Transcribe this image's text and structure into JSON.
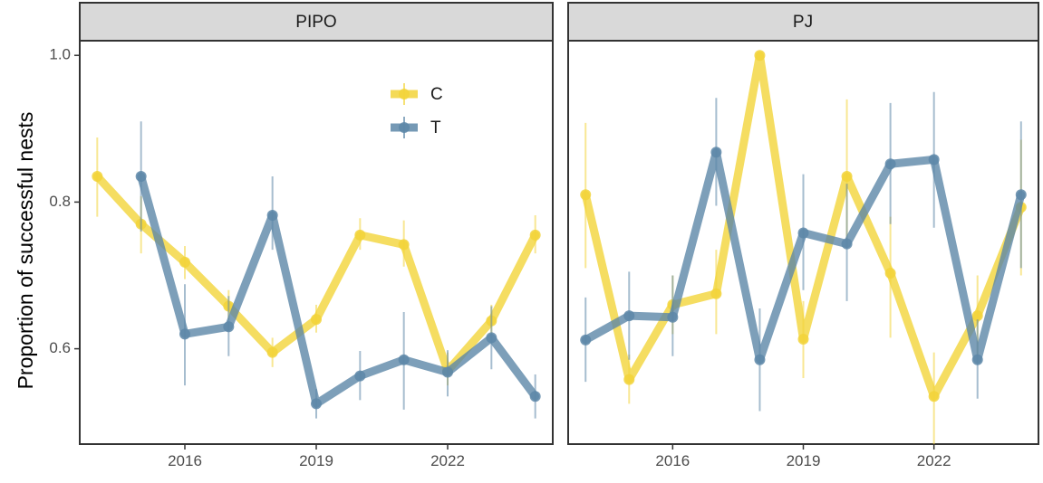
{
  "colors": {
    "C": "#f2d43a",
    "T": "#5d87a8",
    "strip_fill": "#d9d9d9",
    "frame": "#333333"
  },
  "chart_data": {
    "type": "line",
    "ylabel": "Proportion of successful nests",
    "xlabel": "",
    "ylim": [
      0.47,
      1.02
    ],
    "xlim": [
      2013.6,
      2024.4
    ],
    "x_ticks": [
      2016,
      2019,
      2022
    ],
    "y_ticks": [
      0.6,
      0.8,
      1.0
    ],
    "y_tick_labels": [
      "0.6",
      "0.8",
      "1.0"
    ],
    "legend": {
      "position": "inside-top",
      "entries": [
        "C",
        "T"
      ]
    },
    "grid": false,
    "panels": [
      {
        "strip": "PIPO",
        "series": [
          {
            "name": "C",
            "x": [
              2014,
              2015,
              2016,
              2017,
              2018,
              2019,
              2020,
              2021,
              2022,
              2023,
              2024
            ],
            "values": [
              0.835,
              0.77,
              0.718,
              0.658,
              0.595,
              0.64,
              0.755,
              0.742,
              0.57,
              0.638,
              0.755
            ],
            "err_low": [
              0.78,
              0.73,
              0.695,
              0.64,
              0.575,
              0.622,
              0.735,
              0.712,
              0.55,
              0.615,
              0.73
            ],
            "err_high": [
              0.888,
              0.808,
              0.74,
              0.68,
              0.615,
              0.66,
              0.778,
              0.775,
              0.595,
              0.66,
              0.782
            ]
          },
          {
            "name": "T",
            "x": [
              2015,
              2016,
              2017,
              2018,
              2019,
              2020,
              2021,
              2022,
              2023,
              2024
            ],
            "values": [
              0.835,
              0.62,
              0.63,
              0.782,
              0.525,
              0.563,
              0.585,
              0.568,
              0.615,
              0.535
            ],
            "err_low": [
              0.76,
              0.55,
              0.59,
              0.735,
              0.505,
              0.53,
              0.517,
              0.535,
              0.572,
              0.505
            ],
            "err_high": [
              0.91,
              0.688,
              0.672,
              0.835,
              0.545,
              0.597,
              0.65,
              0.598,
              0.658,
              0.565
            ]
          }
        ]
      },
      {
        "strip": "PJ",
        "series": [
          {
            "name": "C",
            "x": [
              2014,
              2015,
              2016,
              2017,
              2018,
              2019,
              2020,
              2021,
              2022,
              2023,
              2024
            ],
            "values": [
              0.81,
              0.558,
              0.66,
              0.675,
              1.0,
              0.613,
              0.835,
              0.703,
              0.535,
              0.645,
              0.793
            ],
            "err_low": [
              0.71,
              0.525,
              0.62,
              0.62,
              1.0,
              0.56,
              0.74,
              0.615,
              0.47,
              0.59,
              0.7
            ],
            "err_high": [
              0.908,
              0.592,
              0.7,
              0.735,
              1.0,
              0.665,
              0.94,
              0.78,
              0.595,
              0.7,
              0.885
            ]
          },
          {
            "name": "T",
            "x": [
              2014,
              2015,
              2016,
              2017,
              2018,
              2019,
              2020,
              2021,
              2022,
              2023,
              2024
            ],
            "values": [
              0.612,
              0.645,
              0.643,
              0.868,
              0.585,
              0.758,
              0.743,
              0.852,
              0.858,
              0.585,
              0.81
            ],
            "err_low": [
              0.555,
              0.585,
              0.59,
              0.795,
              0.515,
              0.68,
              0.665,
              0.77,
              0.765,
              0.532,
              0.71
            ],
            "err_high": [
              0.67,
              0.705,
              0.7,
              0.942,
              0.655,
              0.838,
              0.825,
              0.935,
              0.95,
              0.64,
              0.91
            ]
          }
        ]
      }
    ]
  }
}
